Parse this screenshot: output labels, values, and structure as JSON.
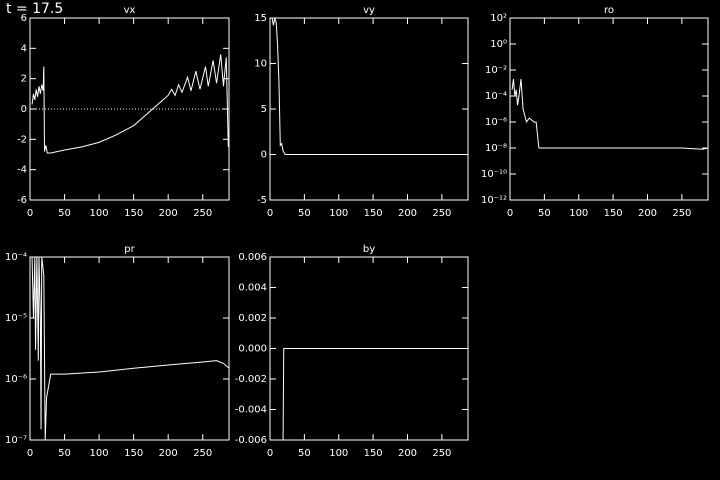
{
  "chart_data": [
    {
      "type": "line",
      "annotation": "t = 17.5",
      "title": "vx",
      "x": [
        3,
        5,
        7,
        9,
        11,
        13,
        15,
        17,
        19,
        20,
        21,
        23,
        25,
        30,
        50,
        75,
        100,
        125,
        150,
        170,
        180,
        190,
        200,
        205,
        210,
        215,
        220,
        228,
        233,
        240,
        246,
        254,
        258,
        265,
        270,
        276,
        280,
        284,
        287
      ],
      "values": [
        0.3,
        1.0,
        0.6,
        1.3,
        0.8,
        1.5,
        1.0,
        1.6,
        1.2,
        2.8,
        -2.8,
        -2.4,
        -2.9,
        -2.9,
        -2.7,
        -2.5,
        -2.2,
        -1.7,
        -1.1,
        -0.3,
        0.1,
        0.5,
        0.9,
        1.3,
        0.9,
        1.6,
        1.1,
        2.1,
        1.2,
        2.5,
        1.3,
        2.8,
        1.5,
        3.2,
        1.7,
        3.6,
        1.5,
        3.4,
        -2.5
      ],
      "color": "#ffffff",
      "reference_line": 0,
      "xlim": [
        0,
        288
      ],
      "xticks": [
        0,
        50,
        100,
        150,
        200,
        250
      ],
      "ylim": [
        -6,
        6
      ],
      "yticks": [
        -6,
        -4,
        -2,
        0,
        2,
        4,
        6
      ]
    },
    {
      "type": "line",
      "title": "vy",
      "x": [
        3,
        5,
        7,
        9,
        11,
        13,
        15,
        17,
        19,
        22,
        288
      ],
      "values": [
        15,
        14.2,
        15,
        14.5,
        12,
        8,
        1,
        1.2,
        0.4,
        0,
        0
      ],
      "color": "#ffffff",
      "xlim": [
        0,
        288
      ],
      "xticks": [
        0,
        50,
        100,
        150,
        200,
        250
      ],
      "ylim": [
        -5,
        15
      ],
      "yticks": [
        -5,
        0,
        5,
        10,
        15
      ]
    },
    {
      "type": "line",
      "title": "ro",
      "log_y": true,
      "x": [
        3,
        5,
        7,
        9,
        11,
        13,
        16,
        19,
        24,
        28,
        35,
        38,
        42,
        150,
        250,
        280,
        288
      ],
      "values": [
        0.0003,
        0.002,
        0.0001,
        0.0003,
        2e-05,
        0.0001,
        0.002,
        1e-05,
        1e-06,
        2e-06,
        1e-06,
        1e-06,
        1e-08,
        1e-08,
        1e-08,
        8e-09,
        1e-08
      ],
      "color": "#ffffff",
      "xlim": [
        0,
        288
      ],
      "xticks": [
        0,
        50,
        100,
        150,
        200,
        250
      ],
      "ylim": [
        1e-12,
        100
      ],
      "yticks": [
        {
          "value": 1e-12,
          "label": "10⁻¹²"
        },
        {
          "value": 1e-10,
          "label": "10⁻¹⁰"
        },
        {
          "value": 1e-08,
          "label": "10⁻⁸"
        },
        {
          "value": 1e-06,
          "label": "10⁻⁶"
        },
        {
          "value": 0.0001,
          "label": "10⁻⁴"
        },
        {
          "value": 0.01,
          "label": "10⁻²"
        },
        {
          "value": 1,
          "label": "10⁰"
        },
        {
          "value": 100,
          "label": "10²"
        }
      ]
    },
    {
      "type": "line",
      "title": "pr",
      "log_y": true,
      "x": [
        3,
        5,
        7,
        8,
        10,
        12,
        13,
        15,
        16,
        17,
        20,
        22,
        24,
        30,
        50,
        100,
        150,
        200,
        250,
        270,
        280,
        288
      ],
      "values": [
        0.0001,
        1e-05,
        0.0001,
        3e-06,
        0.0001,
        2e-06,
        0.0001,
        1e-05,
        1.5e-07,
        0.0001,
        5e-05,
        1e-07,
        5e-07,
        1.2e-06,
        1.2e-06,
        1.3e-06,
        1.5e-06,
        1.7e-06,
        1.9e-06,
        2e-06,
        1.8e-06,
        1.5e-06
      ],
      "color": "#ffffff",
      "xlim": [
        0,
        288
      ],
      "xticks": [
        0,
        50,
        100,
        150,
        200,
        250
      ],
      "ylim": [
        1e-07,
        0.0001
      ],
      "yticks": [
        {
          "value": 1e-07,
          "label": "10⁻⁷"
        },
        {
          "value": 1e-06,
          "label": "10⁻⁶"
        },
        {
          "value": 1e-05,
          "label": "10⁻⁵"
        },
        {
          "value": 0.0001,
          "label": "10⁻⁴"
        }
      ]
    },
    {
      "type": "line",
      "title": "by",
      "x": [
        19,
        20,
        288
      ],
      "values": [
        -0.006,
        0,
        0
      ],
      "color": "#ffffff",
      "xlim": [
        0,
        288
      ],
      "xticks": [
        0,
        50,
        100,
        150,
        200,
        250
      ],
      "ylim": [
        -0.006,
        0.006
      ],
      "yticks": [
        -0.006,
        -0.004,
        -0.002,
        {
          "value": 0,
          "label": "0.000"
        },
        0.002,
        0.004,
        0.006
      ]
    }
  ]
}
